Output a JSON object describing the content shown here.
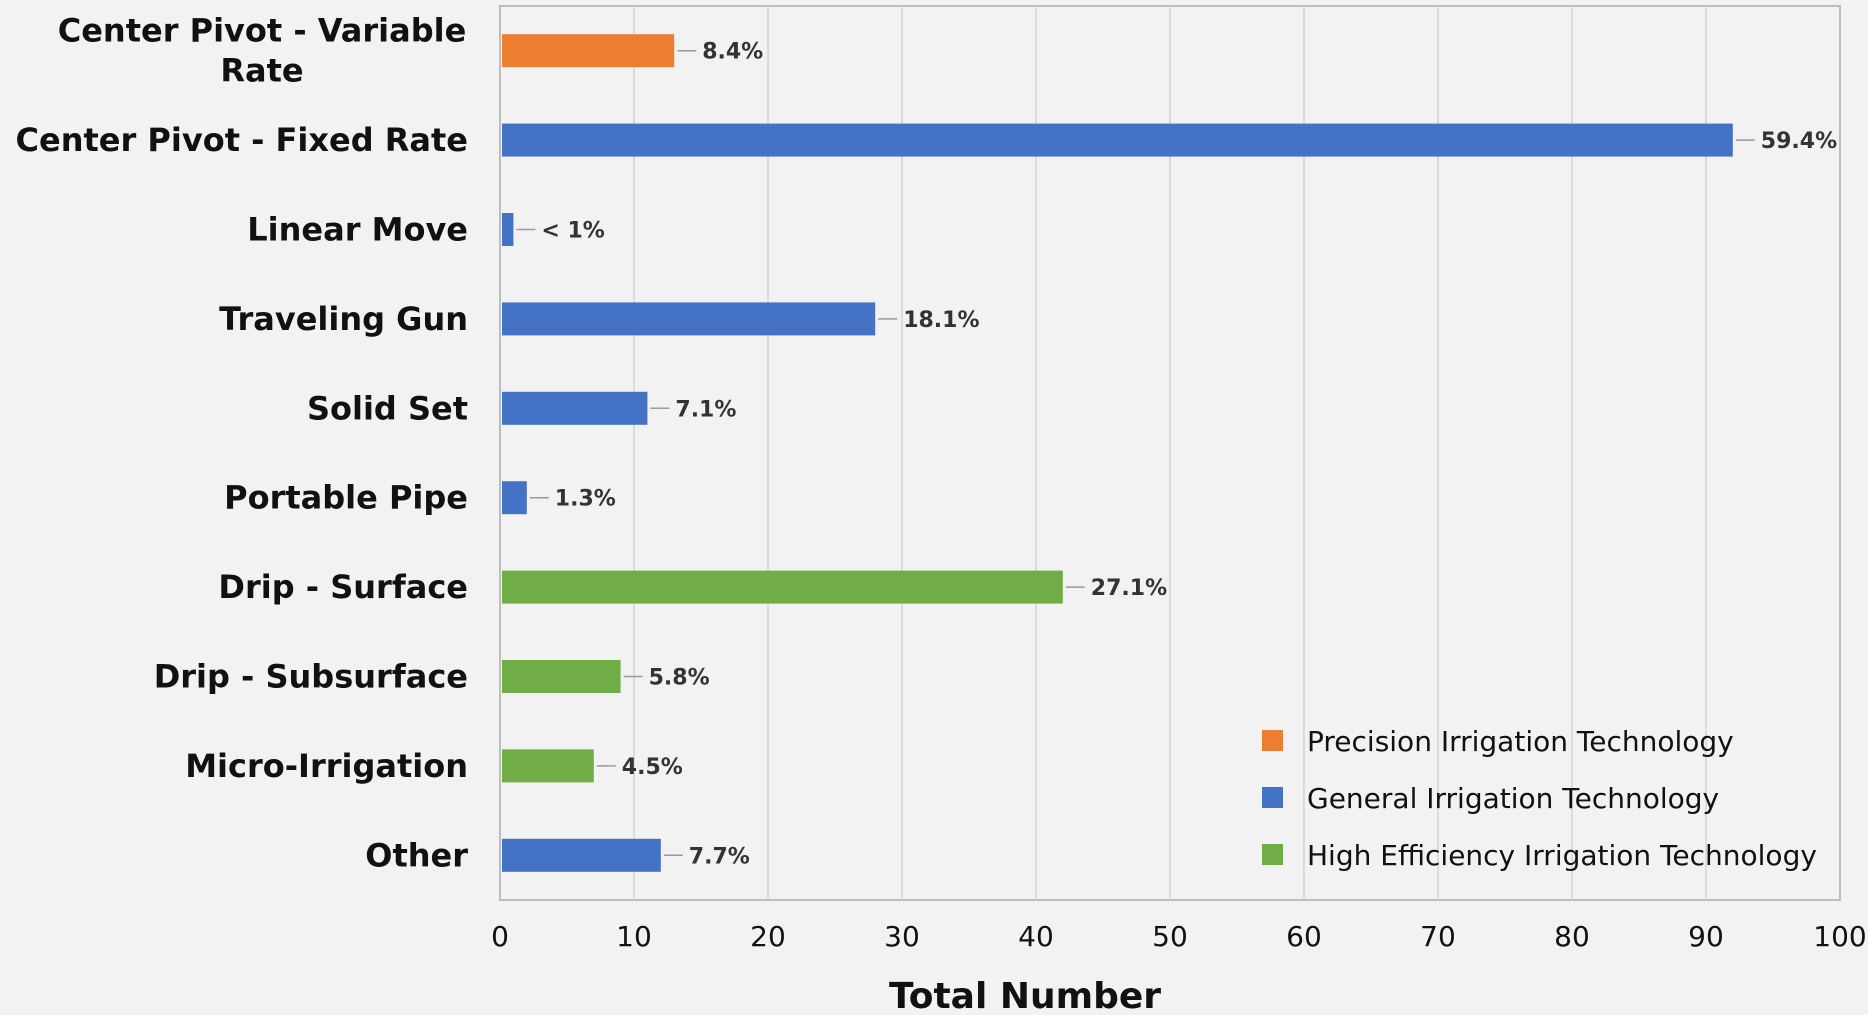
{
  "chart_data": {
    "type": "bar",
    "orientation": "horizontal",
    "categories": [
      [
        "Center Pivot - Variable",
        "Rate"
      ],
      [
        "Center Pivot - Fixed Rate"
      ],
      [
        "Linear Move"
      ],
      [
        "Traveling Gun"
      ],
      [
        "Solid Set"
      ],
      [
        "Portable Pipe"
      ],
      [
        "Drip - Surface"
      ],
      [
        "Drip - Subsurface"
      ],
      [
        "Micro-Irrigation"
      ],
      [
        "Other"
      ]
    ],
    "values": [
      13,
      92,
      1,
      28,
      11,
      2,
      42,
      9,
      7,
      12
    ],
    "data_labels": [
      "8.4%",
      "59.4%",
      "< 1%",
      "18.1%",
      "7.1%",
      "1.3%",
      "27.1%",
      "5.8%",
      "4.5%",
      "7.7%"
    ],
    "groups": [
      "precision",
      "general",
      "general",
      "general",
      "general",
      "general",
      "high",
      "high",
      "high",
      "general"
    ],
    "legend": [
      {
        "key": "precision",
        "name": "Precision Irrigation Technology",
        "color": "#ed7d31"
      },
      {
        "key": "general",
        "name": "General Irrigation Technology",
        "color": "#4472c4"
      },
      {
        "key": "high",
        "name": "High Efficiency Irrigation Technology",
        "color": "#70ad47"
      }
    ],
    "xlabel": "Total Number",
    "ylabel": "",
    "xlim": [
      0,
      100
    ],
    "xticks": [
      0,
      10,
      20,
      30,
      40,
      50,
      60,
      70,
      80,
      90,
      100
    ],
    "grid": true,
    "legend_position": "bottom-right"
  }
}
